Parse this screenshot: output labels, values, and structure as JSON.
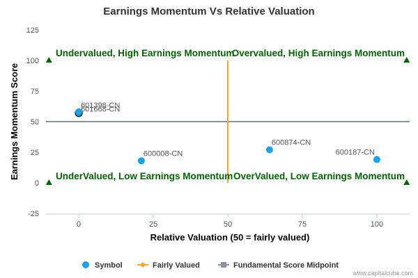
{
  "chart_data": {
    "type": "scatter",
    "title": "Earnings Momentum Vs Relative Valuation",
    "xlabel": "Relative Valuation (50 = fairly valued)",
    "ylabel": "Earnings Momentum Score",
    "xlim": [
      -11,
      111
    ],
    "ylim": [
      -25,
      125
    ],
    "xticks": [
      "0",
      "25",
      "50",
      "75",
      "100"
    ],
    "xtick_values": [
      0,
      25,
      50,
      75,
      100
    ],
    "yticks": [
      "125",
      "100",
      "75",
      "50",
      "25",
      "0",
      "-25"
    ],
    "ytick_values": [
      125,
      100,
      75,
      50,
      25,
      0,
      -25
    ],
    "series": [
      {
        "name": "Symbol",
        "color": "#1aa3e8",
        "points": [
          {
            "label": "601668-CN",
            "x": 0,
            "y": 57
          },
          {
            "label": "601398-CN",
            "x": 0,
            "y": 58
          },
          {
            "label": "600008-CN",
            "x": 21,
            "y": 18
          },
          {
            "label": "600874-CN",
            "x": 64,
            "y": 27
          },
          {
            "label": "600187-CN",
            "x": 100,
            "y": 19
          }
        ]
      },
      {
        "name": "Fairly Valued",
        "color": "#f5a623",
        "x": 50,
        "y_range": [
          0,
          100
        ]
      },
      {
        "name": "Fundamental Score Midpoint",
        "color": "#8a93a6",
        "y": 50,
        "x_range": [
          -11,
          111
        ]
      }
    ],
    "quadrant_markers": [
      {
        "x": -10,
        "y": 100
      },
      {
        "x": 110,
        "y": 100
      },
      {
        "x": -10,
        "y": 0
      },
      {
        "x": 110,
        "y": 0
      }
    ],
    "quadrant_labels": {
      "top_left": "Undervalued, High Earnings Momentum",
      "top_right": "Overvalued, High Earnings Momentum",
      "bottom_left": "UnderValued, Low Earnings Momentum",
      "bottom_right": "OverValued, Low Earnings Momentum"
    },
    "legend_position": "bottom",
    "grid": false
  },
  "credit": "www.capitalcube.com"
}
